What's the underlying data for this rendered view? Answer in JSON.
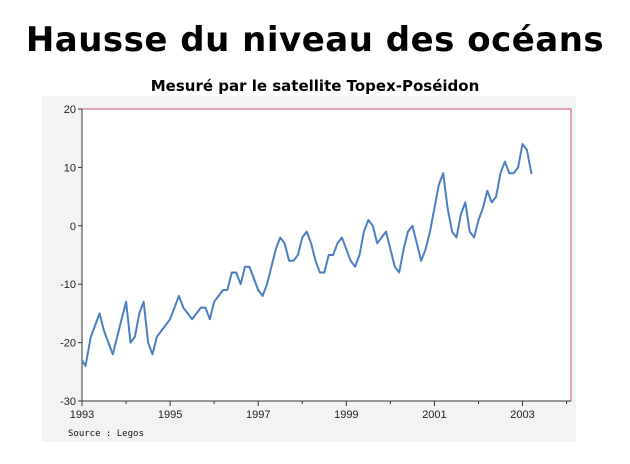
{
  "title": "Hausse du niveau des océans",
  "subtitle": "Mesuré par le satellite Topex-Poséidon",
  "source": "Source : Legos",
  "chart_data": {
    "type": "line",
    "title": "Hausse du niveau des océans",
    "subtitle": "Mesuré par le satellite Topex-Poséidon",
    "xlim": [
      1993,
      2004.1
    ],
    "ylim": [
      -30,
      20
    ],
    "x_ticks": [
      1993,
      1995,
      1997,
      1999,
      2001,
      2003
    ],
    "y_ticks": [
      20,
      10,
      0,
      -10,
      -20,
      -30
    ],
    "grid": false,
    "line_color": "#4a7fc1",
    "frame_color": "#c94f8a",
    "series": [
      {
        "x": [
          1993.0,
          1993.08,
          1993.2,
          1993.3,
          1993.4,
          1993.5,
          1993.6,
          1993.7,
          1993.8,
          1993.9,
          1994.0,
          1994.1,
          1994.2,
          1994.3,
          1994.4,
          1994.5,
          1994.6,
          1994.7,
          1994.8,
          1994.9,
          1995.0,
          1995.1,
          1995.2,
          1995.3,
          1995.4,
          1995.5,
          1995.6,
          1995.7,
          1995.8,
          1995.9,
          1996.0,
          1996.1,
          1996.2,
          1996.3,
          1996.4,
          1996.5,
          1996.6,
          1996.7,
          1996.8,
          1996.9,
          1997.0,
          1997.1,
          1997.2,
          1997.3,
          1997.4,
          1997.5,
          1997.6,
          1997.7,
          1997.8,
          1997.9,
          1998.0,
          1998.1,
          1998.2,
          1998.3,
          1998.4,
          1998.5,
          1998.6,
          1998.7,
          1998.8,
          1998.9,
          1999.0,
          1999.1,
          1999.2,
          1999.3,
          1999.4,
          1999.5,
          1999.6,
          1999.7,
          1999.8,
          1999.9,
          2000.0,
          2000.1,
          2000.2,
          2000.3,
          2000.4,
          2000.5,
          2000.6,
          2000.7,
          2000.8,
          2000.9,
          2001.0,
          2001.1,
          2001.2,
          2001.3,
          2001.4,
          2001.5,
          2001.6,
          2001.7,
          2001.8,
          2001.9,
          2002.0,
          2002.1,
          2002.2,
          2002.3,
          2002.4,
          2002.5,
          2002.6,
          2002.7,
          2002.8,
          2002.9,
          2003.0,
          2003.1,
          2003.2
        ],
        "values": [
          -23,
          -24,
          -19,
          -17,
          -15,
          -18,
          -20,
          -22,
          -19,
          -16,
          -13,
          -20,
          -19,
          -15,
          -13,
          -20,
          -22,
          -19,
          -18,
          -17,
          -16,
          -14,
          -12,
          -14,
          -15,
          -16,
          -15,
          -14,
          -14,
          -16,
          -13,
          -12,
          -11,
          -11,
          -8,
          -8,
          -10,
          -7,
          -7,
          -9,
          -11,
          -12,
          -10,
          -7,
          -4,
          -2,
          -3,
          -6,
          -6,
          -5,
          -2,
          -1,
          -3,
          -6,
          -8,
          -8,
          -5,
          -5,
          -3,
          -2,
          -4,
          -6,
          -7,
          -5,
          -1,
          1,
          0,
          -3,
          -2,
          -1,
          -4,
          -7,
          -8,
          -4,
          -1,
          0,
          -3,
          -6,
          -4,
          -1,
          3,
          7,
          9,
          3,
          -1,
          -2,
          2,
          4,
          -1,
          -2,
          1,
          3,
          6,
          4,
          5,
          9,
          11,
          9,
          9,
          10,
          14,
          13,
          9
        ]
      }
    ]
  }
}
